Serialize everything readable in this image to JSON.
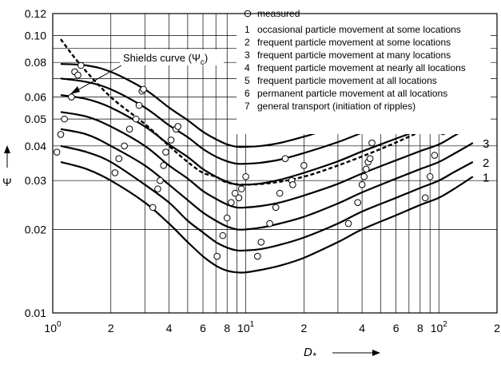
{
  "chart_data": {
    "type": "line",
    "xscale": "log",
    "yscale": "log",
    "xlim": [
      1,
      200
    ],
    "ylim": [
      0.01,
      0.12
    ],
    "grid": true,
    "x_tick_labels": [
      {
        "x": 1,
        "base": "10",
        "exp": "0"
      },
      {
        "x": 2,
        "text": "2"
      },
      {
        "x": 4,
        "text": "4"
      },
      {
        "x": 6,
        "text": "6"
      },
      {
        "x": 8,
        "text": "8"
      },
      {
        "x": 10,
        "base": "10",
        "exp": "1"
      },
      {
        "x": 20,
        "text": "2"
      },
      {
        "x": 40,
        "text": "4"
      },
      {
        "x": 60,
        "text": "6"
      },
      {
        "x": 80,
        "text": "8"
      },
      {
        "x": 100,
        "base": "10",
        "exp": "2"
      },
      {
        "x": 200,
        "text": "2"
      }
    ],
    "y_tick_labels": [
      {
        "y": 0.01,
        "text": "0.01"
      },
      {
        "y": 0.02,
        "text": "0.02"
      },
      {
        "y": 0.03,
        "text": "0.03"
      },
      {
        "y": 0.04,
        "text": "0.04"
      },
      {
        "y": 0.05,
        "text": "0.05"
      },
      {
        "y": 0.06,
        "text": "0.06"
      },
      {
        "y": 0.08,
        "text": "0.08"
      },
      {
        "y": 0.1,
        "text": "0.10"
      },
      {
        "y": 0.12,
        "text": "0.12"
      }
    ],
    "xlabel_main": "D",
    "xlabel_sub": "*",
    "ylabel": "Ψ",
    "legend": {
      "marker_entry": "measured",
      "items": [
        {
          "num": "1",
          "text": "occasional particle movement at some locations"
        },
        {
          "num": "2",
          "text": "frequent particle movement at some locations"
        },
        {
          "num": "3",
          "text": "frequent particle movement at many locations"
        },
        {
          "num": "4",
          "text": "frequent particle movement at nearly all locations"
        },
        {
          "num": "5",
          "text": "frequent particle movement at all locations"
        },
        {
          "num": "6",
          "text": "permanent particle movement at all locations"
        },
        {
          "num": "7",
          "text": "general transport (initiation of ripples)"
        }
      ]
    },
    "shields": {
      "label": "Shields curve (Ψ",
      "label_sub": "c",
      "label_end": ")",
      "x": [
        1.1,
        1.4,
        2.0,
        3.0,
        4.0,
        5.0,
        6.0,
        7.0,
        8.0,
        10.0,
        14.0,
        20.0,
        30.0,
        50.0,
        80.0,
        120.0,
        150.0
      ],
      "y": [
        0.097,
        0.078,
        0.06,
        0.048,
        0.04,
        0.035,
        0.032,
        0.031,
        0.0295,
        0.029,
        0.0295,
        0.031,
        0.034,
        0.039,
        0.045,
        0.051,
        0.055
      ]
    },
    "series": [
      {
        "name": "1",
        "x": [
          1.1,
          1.5,
          2,
          3,
          4,
          5,
          6,
          7,
          8,
          9,
          10,
          12,
          15,
          20,
          30,
          40,
          60,
          80,
          100,
          120,
          150
        ],
        "y": [
          0.035,
          0.033,
          0.03,
          0.025,
          0.021,
          0.018,
          0.016,
          0.0148,
          0.0142,
          0.014,
          0.014,
          0.0143,
          0.0148,
          0.0158,
          0.018,
          0.02,
          0.0225,
          0.0245,
          0.026,
          0.028,
          0.031
        ]
      },
      {
        "name": "2",
        "x": [
          1.1,
          1.5,
          2,
          3,
          4,
          5,
          6,
          7,
          8,
          9,
          10,
          12,
          15,
          20,
          30,
          40,
          60,
          80,
          100,
          120,
          150
        ],
        "y": [
          0.04,
          0.038,
          0.035,
          0.029,
          0.025,
          0.0215,
          0.0195,
          0.018,
          0.0172,
          0.0168,
          0.0168,
          0.017,
          0.0176,
          0.0187,
          0.021,
          0.0232,
          0.026,
          0.0282,
          0.03,
          0.0322,
          0.035
        ]
      },
      {
        "name": "3",
        "x": [
          1.1,
          1.5,
          2,
          3,
          4,
          5,
          6,
          7,
          8,
          9,
          10,
          12,
          15,
          20,
          30,
          40,
          60,
          80,
          100,
          120,
          150
        ],
        "y": [
          0.046,
          0.044,
          0.04,
          0.034,
          0.029,
          0.0255,
          0.023,
          0.0215,
          0.0205,
          0.02,
          0.02,
          0.0203,
          0.021,
          0.0222,
          0.0248,
          0.0272,
          0.0305,
          0.033,
          0.035,
          0.0375,
          0.041
        ]
      },
      {
        "name": "4",
        "x": [
          1.1,
          1.5,
          2,
          3,
          4,
          5,
          6,
          7,
          8,
          9,
          10,
          12,
          15,
          20,
          30,
          40,
          60,
          80,
          100,
          120,
          150
        ],
        "y": [
          0.053,
          0.051,
          0.047,
          0.04,
          0.034,
          0.0305,
          0.0275,
          0.0258,
          0.0246,
          0.024,
          0.024,
          0.0243,
          0.025,
          0.0265,
          0.0292,
          0.0318,
          0.0355,
          0.0383,
          0.0405,
          0.0435,
          0.0475
        ]
      },
      {
        "name": "5",
        "x": [
          1.1,
          1.5,
          2,
          3,
          4,
          5,
          6,
          7,
          8,
          9,
          10,
          12,
          15,
          20,
          30,
          40,
          60,
          80,
          100,
          120,
          150
        ],
        "y": [
          0.061,
          0.059,
          0.055,
          0.047,
          0.0405,
          0.0365,
          0.033,
          0.031,
          0.0297,
          0.029,
          0.029,
          0.0293,
          0.0302,
          0.032,
          0.0352,
          0.0382,
          0.0425,
          0.0458,
          0.0485,
          0.0515,
          0.055
        ]
      },
      {
        "name": "6",
        "x": [
          1.1,
          1.5,
          2,
          3,
          4,
          5,
          6,
          7,
          8,
          9,
          10,
          12,
          15,
          20,
          30,
          40,
          60,
          80,
          100,
          120,
          150
        ],
        "y": [
          0.07,
          0.068,
          0.064,
          0.055,
          0.0475,
          0.043,
          0.039,
          0.0366,
          0.0352,
          0.0345,
          0.0345,
          0.0348,
          0.0357,
          0.0377,
          0.0413,
          0.0446,
          0.0495,
          0.053,
          0.056,
          0.0595,
          0.064
        ]
      },
      {
        "name": "7",
        "x": [
          1.1,
          1.5,
          2,
          3,
          4,
          5,
          6,
          7,
          8,
          9,
          10,
          12,
          15,
          20,
          30,
          40,
          60,
          80,
          100,
          120,
          150
        ],
        "y": [
          0.079,
          0.078,
          0.074,
          0.064,
          0.055,
          0.0495,
          0.045,
          0.0423,
          0.0405,
          0.0397,
          0.0397,
          0.04,
          0.041,
          0.0432,
          0.047,
          0.0507,
          0.0562,
          0.0605,
          0.064,
          0.068,
          0.073
        ]
      }
    ],
    "measured": {
      "x": [
        1.05,
        1.1,
        1.15,
        1.25,
        1.3,
        1.35,
        1.4,
        2.1,
        2.2,
        2.35,
        2.5,
        2.7,
        2.8,
        2.9,
        2.95,
        3.3,
        3.5,
        3.6,
        3.75,
        3.85,
        4.1,
        4.35,
        4.45,
        7.1,
        7.6,
        8.0,
        8.4,
        8.8,
        9.2,
        9.5,
        10.0,
        11.5,
        12.0,
        13.3,
        14.3,
        15.0,
        16.0,
        17.3,
        17.5,
        20.0,
        34.0,
        38.0,
        40.0,
        41.0,
        42.0,
        43.0,
        44.0,
        45.0,
        85.0,
        90.0,
        95.0,
        105.0,
        120.0,
        130.0,
        140.0
      ],
      "y": [
        0.038,
        0.044,
        0.05,
        0.06,
        0.074,
        0.072,
        0.078,
        0.032,
        0.036,
        0.04,
        0.046,
        0.05,
        0.056,
        0.063,
        0.064,
        0.024,
        0.028,
        0.03,
        0.034,
        0.038,
        0.042,
        0.046,
        0.047,
        0.016,
        0.019,
        0.022,
        0.025,
        0.027,
        0.026,
        0.028,
        0.031,
        0.016,
        0.018,
        0.021,
        0.024,
        0.027,
        0.036,
        0.03,
        0.029,
        0.034,
        0.021,
        0.025,
        0.029,
        0.031,
        0.033,
        0.035,
        0.036,
        0.041,
        0.026,
        0.031,
        0.037,
        0.045,
        0.051,
        0.056,
        0.064
      ]
    }
  }
}
